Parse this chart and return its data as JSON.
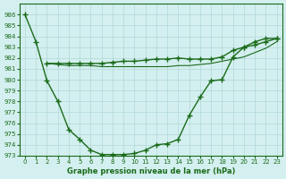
{
  "bg_color": "#d4efef",
  "line_color": "#1a6b1a",
  "grid_color": "#b0d8d8",
  "xlabel": "Graphe pression niveau de la mer (hPa)",
  "ylim": [
    973,
    987
  ],
  "xlim": [
    -0.5,
    23.5
  ],
  "yticks": [
    973,
    974,
    975,
    976,
    977,
    978,
    979,
    980,
    981,
    982,
    983,
    984,
    985,
    986
  ],
  "xticks": [
    0,
    1,
    2,
    3,
    4,
    5,
    6,
    7,
    8,
    9,
    10,
    11,
    12,
    13,
    14,
    15,
    16,
    17,
    18,
    19,
    20,
    21,
    22,
    23
  ],
  "x_main": [
    0,
    1,
    2,
    3,
    4,
    5,
    6,
    7,
    8,
    9,
    10,
    11,
    12,
    13,
    14,
    15,
    16,
    17,
    18,
    19,
    20,
    21,
    22,
    23
  ],
  "y_main": [
    986,
    983.5,
    979.9,
    978.0,
    975.4,
    974.5,
    973.5,
    973.1,
    973.1,
    973.1,
    973.2,
    973.5,
    974.0,
    974.1,
    974.5,
    976.7,
    978.4,
    979.9,
    980.0,
    982.1,
    983.0,
    983.5,
    983.8,
    983.8
  ],
  "x_flat1": [
    2,
    3,
    4,
    5,
    6,
    7,
    8,
    9,
    10,
    11,
    12,
    13,
    14,
    15,
    16,
    17,
    18,
    19,
    20,
    21,
    22,
    23
  ],
  "y_flat1": [
    981.5,
    981.5,
    981.5,
    981.5,
    981.5,
    981.5,
    981.6,
    981.7,
    981.7,
    981.8,
    981.9,
    981.9,
    982.0,
    981.9,
    981.9,
    981.9,
    982.1,
    982.7,
    983.0,
    983.2,
    983.5,
    983.8
  ],
  "x_flat2": [
    2,
    3,
    4,
    5,
    6,
    7,
    8,
    9,
    10,
    11,
    12,
    13,
    14,
    15,
    16,
    17,
    18,
    19,
    20,
    21,
    22,
    23
  ],
  "y_flat2": [
    981.5,
    981.4,
    981.3,
    981.3,
    981.3,
    981.2,
    981.2,
    981.2,
    981.2,
    981.2,
    981.2,
    981.2,
    981.3,
    981.3,
    981.4,
    981.5,
    981.7,
    981.9,
    982.1,
    982.5,
    982.9,
    983.5
  ]
}
